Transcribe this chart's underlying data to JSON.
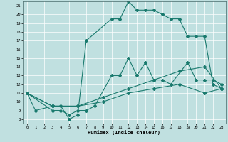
{
  "xlabel": "Humidex (Indice chaleur)",
  "xlim": [
    -0.5,
    23.5
  ],
  "ylim": [
    7.5,
    21.5
  ],
  "xticks": [
    0,
    1,
    2,
    3,
    4,
    5,
    6,
    7,
    8,
    9,
    10,
    11,
    12,
    13,
    14,
    15,
    16,
    17,
    18,
    19,
    20,
    21,
    22,
    23
  ],
  "yticks": [
    8,
    9,
    10,
    11,
    12,
    13,
    14,
    15,
    16,
    17,
    18,
    19,
    20,
    21
  ],
  "bg_color": "#c0e0e0",
  "line_color": "#1a7a6e",
  "lines": [
    {
      "x": [
        0,
        1,
        3,
        4,
        5,
        6,
        7,
        10,
        11,
        12,
        13,
        14,
        15,
        16,
        17,
        18,
        19,
        20,
        21,
        22,
        23
      ],
      "y": [
        11,
        9,
        9.5,
        9.5,
        8,
        8.5,
        17,
        19.5,
        19.5,
        21.5,
        20.5,
        20.5,
        20.5,
        20,
        19.5,
        19.5,
        17.5,
        17.5,
        17.5,
        12,
        11.5
      ]
    },
    {
      "x": [
        0,
        3,
        4,
        5,
        6,
        7,
        8,
        10,
        11,
        12,
        13,
        14,
        15,
        16,
        17,
        19,
        20,
        21,
        22,
        23
      ],
      "y": [
        11,
        9,
        9,
        8.5,
        9,
        9,
        9.5,
        13,
        13,
        15,
        13,
        14.5,
        12.5,
        12.5,
        12,
        14.5,
        12.5,
        12.5,
        12.5,
        12
      ]
    },
    {
      "x": [
        0,
        23
      ],
      "y": [
        11,
        11.5
      ],
      "sparse": true,
      "full_x": [
        0,
        3,
        6,
        9,
        12,
        15,
        18,
        21,
        23
      ],
      "full_y": [
        11,
        9.5,
        9.5,
        10.5,
        11.5,
        12.5,
        13.5,
        14,
        11.5
      ]
    },
    {
      "x": [
        0,
        23
      ],
      "y": [
        11,
        11.5
      ],
      "sparse": true,
      "full_x": [
        0,
        3,
        6,
        9,
        12,
        15,
        18,
        21,
        23
      ],
      "full_y": [
        11,
        9.5,
        9.5,
        10,
        11,
        11.5,
        12,
        11,
        11.5
      ]
    }
  ]
}
